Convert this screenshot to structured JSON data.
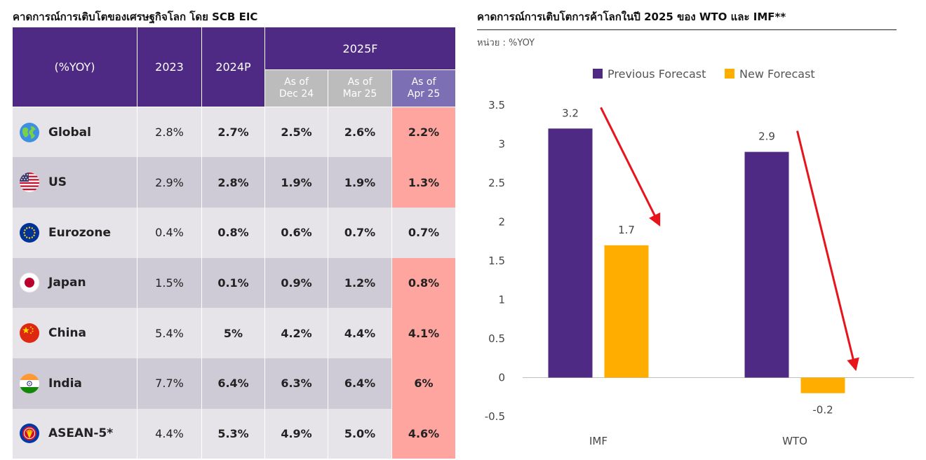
{
  "left": {
    "title": "คาดการณ์การเติบโตของเศรษฐกิจโลก โดย SCB EIC",
    "header": {
      "metric": "(%YOY)",
      "y2023": "2023",
      "y2024": "2024P",
      "group": "2025F",
      "sub": [
        "As of\nDec 24",
        "As of\nMar 25",
        "As of\nApr 25"
      ]
    },
    "rows": [
      {
        "name": "Global",
        "icon": "globe-icon",
        "v2023": "2.8%",
        "v2024": "2.7%",
        "dec24": "2.5%",
        "mar25": "2.6%",
        "apr25": "2.2%",
        "highlight": true
      },
      {
        "name": "US",
        "icon": "us-flag-icon",
        "v2023": "2.9%",
        "v2024": "2.8%",
        "dec24": "1.9%",
        "mar25": "1.9%",
        "apr25": "1.3%",
        "highlight": true
      },
      {
        "name": "Eurozone",
        "icon": "eu-flag-icon",
        "v2023": "0.4%",
        "v2024": "0.8%",
        "dec24": "0.6%",
        "mar25": "0.7%",
        "apr25": "0.7%",
        "highlight": false
      },
      {
        "name": "Japan",
        "icon": "japan-flag-icon",
        "v2023": "1.5%",
        "v2024": "0.1%",
        "dec24": "0.9%",
        "mar25": "1.2%",
        "apr25": "0.8%",
        "highlight": true
      },
      {
        "name": "China",
        "icon": "china-flag-icon",
        "v2023": "5.4%",
        "v2024": "5%",
        "dec24": "4.2%",
        "mar25": "4.4%",
        "apr25": "4.1%",
        "highlight": true
      },
      {
        "name": "India",
        "icon": "india-flag-icon",
        "v2023": "7.7%",
        "v2024": "6.4%",
        "dec24": "6.3%",
        "mar25": "6.4%",
        "apr25": "6%",
        "highlight": true
      },
      {
        "name": "ASEAN-5*",
        "icon": "asean-icon",
        "v2023": "4.4%",
        "v2024": "5.3%",
        "dec24": "4.9%",
        "mar25": "5.0%",
        "apr25": "4.6%",
        "highlight": true
      }
    ]
  },
  "right": {
    "title": "คาดการณ์การเติบโตการค้าโลกในปี 2025 ของ WTO และ IMF**",
    "unit": "หน่วย : %YOY"
  },
  "colors": {
    "header_purple": "#4f2a84",
    "apr_header": "#7c6fb3",
    "grey_header": "#bcbcbc",
    "row_light": "#e6e4e9",
    "row_dark": "#cfcbd6",
    "highlight": "#ffa5a0",
    "previous": "#4f2a84",
    "new": "#ffae00",
    "arrow": "#e8141b"
  },
  "chart_data": {
    "type": "bar",
    "categories": [
      "IMF",
      "WTO"
    ],
    "series": [
      {
        "name": "Previous Forecast",
        "values": [
          3.2,
          2.9
        ]
      },
      {
        "name": "New Forecast",
        "values": [
          1.7,
          -0.2
        ]
      }
    ],
    "data_labels": [
      [
        "3.2",
        "2.9"
      ],
      [
        "1.7",
        "-0.2"
      ]
    ],
    "yticks": [
      "3.5",
      "3",
      "2.5",
      "2",
      "1.5",
      "1",
      "0.5",
      "0",
      "-0.5"
    ],
    "ylim": [
      -0.5,
      3.5
    ],
    "legend": "top",
    "grid": false,
    "annotations": "downward red arrows from previous to new forecast"
  }
}
